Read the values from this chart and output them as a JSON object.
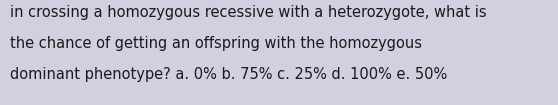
{
  "line1": "in crossing a homozygous recessive with a heterozygote, what is",
  "line2": "the chance of getting an offspring with the homozygous",
  "line3": "dominant phenotype? a. 0% b. 75% c. 25% d. 100% e. 50%",
  "background_color": "#d0d0e0",
  "text_color": "#1a1a1a",
  "font_size": 10.5,
  "fig_width": 5.58,
  "fig_height": 1.05,
  "dpi": 100
}
